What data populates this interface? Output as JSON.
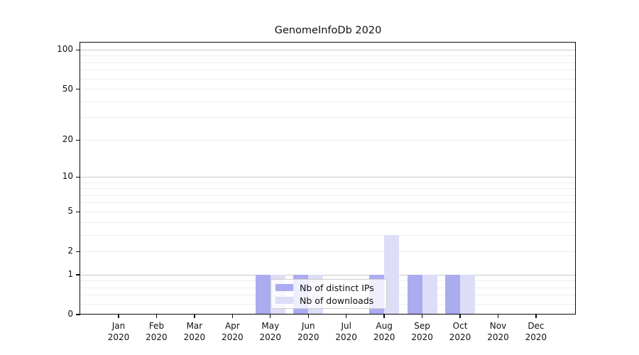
{
  "chart_data": {
    "type": "bar",
    "title": "GenomeInfoDb 2020",
    "categories": [
      {
        "month": "Jan",
        "year": "2020"
      },
      {
        "month": "Feb",
        "year": "2020"
      },
      {
        "month": "Mar",
        "year": "2020"
      },
      {
        "month": "Apr",
        "year": "2020"
      },
      {
        "month": "May",
        "year": "2020"
      },
      {
        "month": "Jun",
        "year": "2020"
      },
      {
        "month": "Jul",
        "year": "2020"
      },
      {
        "month": "Aug",
        "year": "2020"
      },
      {
        "month": "Sep",
        "year": "2020"
      },
      {
        "month": "Oct",
        "year": "2020"
      },
      {
        "month": "Nov",
        "year": "2020"
      },
      {
        "month": "Dec",
        "year": "2020"
      }
    ],
    "series": [
      {
        "name": "Nb of distinct IPs",
        "color": "#ABABF0",
        "values": [
          0,
          0,
          0,
          0,
          1,
          1,
          0,
          1,
          1,
          1,
          0,
          0
        ]
      },
      {
        "name": "Nb of downloads",
        "color": "#DDDDF8",
        "values": [
          0,
          0,
          0,
          0,
          1,
          1,
          0,
          3,
          1,
          1,
          0,
          0
        ]
      }
    ],
    "yscale": "log1p",
    "yticks": [
      0,
      1,
      2,
      5,
      10,
      20,
      50,
      100
    ],
    "ylim": [
      0,
      114
    ],
    "xlabel": "",
    "ylabel": "",
    "grid": true,
    "legend_position": "inside-lower-center"
  },
  "colors": {
    "major_grid": "#c9c9c9",
    "minor_grid": "#ededed",
    "axis": "#0a0a0a"
  }
}
